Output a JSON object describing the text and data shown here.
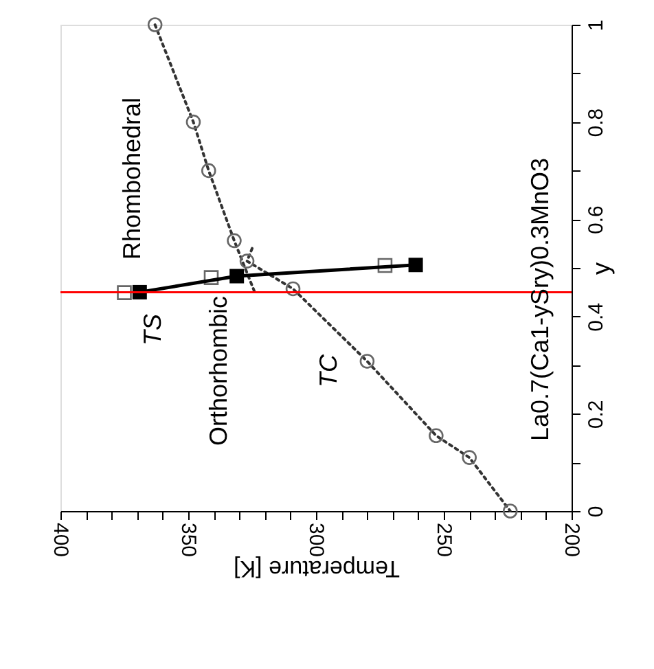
{
  "chart_data": {
    "type": "scatter",
    "xlabel": "Temperature [K]",
    "ylabel": "y",
    "xlim": [
      400,
      200
    ],
    "ylim": [
      0,
      1
    ],
    "xticks": [
      400,
      {
        "value": 390,
        "label": null
      },
      {
        "value": 380,
        "label": null
      },
      {
        "value": 370,
        "label": null
      },
      {
        "value": 360,
        "label": null
      },
      350,
      {
        "value": 340,
        "label": null
      },
      {
        "value": 330,
        "label": null
      },
      {
        "value": 320,
        "label": null
      },
      {
        "value": 310,
        "label": null
      },
      300,
      {
        "value": 290,
        "label": null
      },
      {
        "value": 280,
        "label": null
      },
      {
        "value": 270,
        "label": null
      },
      {
        "value": 260,
        "label": null
      },
      250,
      {
        "value": 240,
        "label": null
      },
      {
        "value": 230,
        "label": null
      },
      {
        "value": 220,
        "label": null
      },
      {
        "value": 210,
        "label": null
      },
      200
    ],
    "yticks": [
      0,
      {
        "value": 0.1,
        "label": null
      },
      0.2,
      {
        "value": 0.3,
        "label": null
      },
      0.4,
      {
        "value": 0.5,
        "label": null
      },
      0.6,
      {
        "value": 0.7,
        "label": null
      },
      0.8,
      {
        "value": 0.9,
        "label": null
      },
      1
    ],
    "grid": false,
    "series": [
      {
        "type": "line",
        "marker": "none",
        "line_style": "dotted",
        "color": "#333333",
        "x": [
          363,
          348,
          342,
          332,
          324
        ],
        "values": [
          1,
          0.8,
          0.7,
          0.556,
          0.45
        ]
      },
      {
        "type": "line",
        "marker": "none",
        "line_style": "dotted",
        "color": "#333333",
        "x": [
          325,
          327,
          309,
          280,
          253,
          240,
          224
        ],
        "values": [
          0.54,
          0.514,
          0.457,
          0.308,
          0.155,
          0.11,
          0
        ]
      },
      {
        "type": "scatter",
        "marker": "circle",
        "color": "#666666",
        "x": [
          363,
          348,
          342,
          332,
          327,
          309,
          280,
          253,
          240,
          224
        ],
        "values": [
          1,
          0.8,
          0.7,
          0.556,
          0.514,
          0.457,
          0.308,
          0.155,
          0.11,
          0
        ]
      },
      {
        "type": "scatter",
        "marker": "square",
        "color": "#666666",
        "x": [
          375,
          341,
          273
        ],
        "values": [
          0.449,
          0.48,
          0.505
        ]
      },
      {
        "type": "line",
        "marker": "square",
        "line_style": "solid",
        "color": "#000000",
        "x": [
          369,
          331,
          261
        ],
        "values": [
          0.45,
          0.483,
          0.506
        ]
      }
    ],
    "ref_lines": [
      {
        "axis": "y",
        "value": 0.45,
        "color": "#ff0000"
      }
    ],
    "annotations": [
      "Rhombohedral",
      "Orthorhombic",
      "TS",
      "TC",
      "La0.7(Ca1-ySry)0.3MnO3"
    ]
  }
}
